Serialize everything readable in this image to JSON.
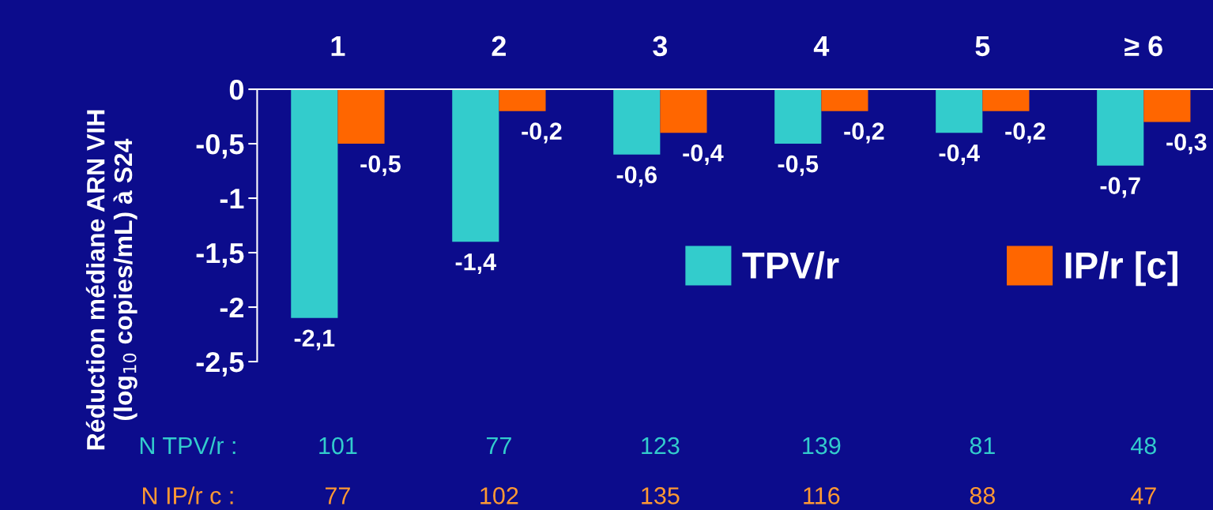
{
  "chart_data": {
    "type": "bar",
    "ylabel": "Réduction médiane ARN VIH\n(log$_{10}$ copies/mL) à S24",
    "categories": [
      "1",
      "2",
      "3",
      "4",
      "5",
      "≥ 6"
    ],
    "series": [
      {
        "name": "TPV/r",
        "color": "#33cccc",
        "values": [
          -2.1,
          -1.4,
          -0.6,
          -0.5,
          -0.4,
          -0.7
        ],
        "value_labels": [
          "-2,1",
          "-1,4",
          "-0,6",
          "-0,5",
          "-0,4",
          "-0,7"
        ]
      },
      {
        "name": "IP/r [c]",
        "color": "#ff6600",
        "values": [
          -0.5,
          -0.2,
          -0.4,
          -0.2,
          -0.2,
          -0.3
        ],
        "value_labels": [
          "-0,5",
          "-0,2",
          "-0,4",
          "-0,2",
          "-0,2",
          "-0,3"
        ]
      }
    ],
    "ylim": [
      -2.5,
      0
    ],
    "yticks": [
      {
        "value": 0,
        "label": "0"
      },
      {
        "value": -0.5,
        "label": "-0,5"
      },
      {
        "value": -1,
        "label": "-1"
      },
      {
        "value": -1.5,
        "label": "-1,5"
      },
      {
        "value": -2,
        "label": "-2"
      },
      {
        "value": -2.5,
        "label": "-2,5"
      }
    ],
    "legend": "right",
    "grid": false,
    "annotations": [
      "N TPV/r :",
      "101",
      "77",
      "123",
      "139",
      "81",
      "48",
      "N IP/r c :",
      "77",
      "102",
      "135",
      "116",
      "88",
      "47"
    ]
  }
}
